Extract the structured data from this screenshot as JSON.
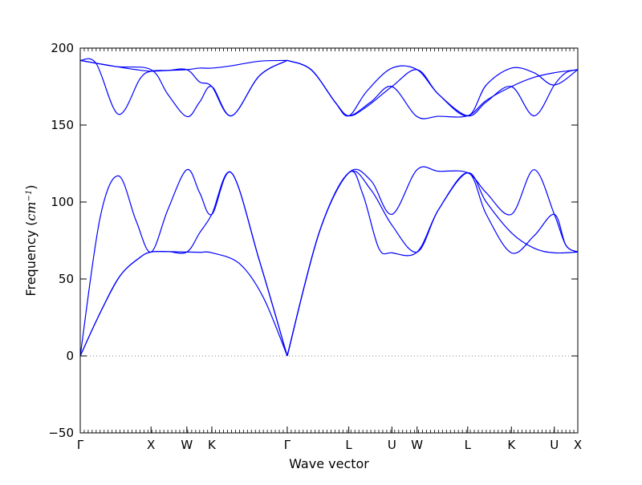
{
  "chart_data": {
    "type": "line",
    "title": "",
    "xlabel": "Wave vector",
    "ylabel": {
      "prefix": "Frequency (",
      "unit": "cm",
      "exponent": "−1",
      "suffix": ")"
    },
    "ylim": [
      -50,
      200
    ],
    "yticks": [
      {
        "value": -50,
        "label": "−50"
      },
      {
        "value": 0,
        "label": "0"
      },
      {
        "value": 50,
        "label": "50"
      },
      {
        "value": 100,
        "label": "100"
      },
      {
        "value": 150,
        "label": "150"
      },
      {
        "value": 200,
        "label": "200"
      }
    ],
    "xlim": [
      0,
      6.25
    ],
    "high_symmetry_points": [
      {
        "label": "Γ",
        "x": 0.0
      },
      {
        "label": "X",
        "x": 0.889
      },
      {
        "label": "W",
        "x": 1.339
      },
      {
        "label": "K",
        "x": 1.653
      },
      {
        "label": "Γ",
        "x": 2.6
      },
      {
        "label": "L",
        "x": 3.373
      },
      {
        "label": "U",
        "x": 3.915
      },
      {
        "label": "W",
        "x": 4.231
      },
      {
        "label": "L",
        "x": 4.867
      },
      {
        "label": "K",
        "x": 5.416
      },
      {
        "label": "U",
        "x": 5.955
      },
      {
        "label": "X",
        "x": 6.25
      }
    ],
    "zero_line": {
      "value": 0,
      "style": "dotted",
      "color": "#808080"
    },
    "grid": false,
    "line_color": "#0000ff",
    "series": [
      {
        "x": [
          0,
          0.25,
          0.5,
          0.75,
          0.889,
          1.1,
          1.339,
          1.5,
          1.653,
          2.0,
          2.3,
          2.6
        ],
        "y": [
          0,
          28,
          52,
          64,
          67.5,
          67.8,
          67.5,
          67.3,
          67,
          60,
          38,
          0
        ]
      },
      {
        "x": [
          0,
          0.25,
          0.5,
          0.75,
          0.889,
          1.1,
          1.339,
          1.5,
          1.653,
          1.9,
          2.25,
          2.6
        ],
        "y": [
          0,
          28,
          52,
          64,
          67.5,
          67.8,
          67.5,
          80,
          92,
          119,
          62,
          0
        ]
      },
      {
        "x": [
          0,
          0.25,
          0.48,
          0.7,
          0.889,
          1.1,
          1.339,
          1.5,
          1.653,
          1.9,
          2.25,
          2.6
        ],
        "y": [
          0,
          90,
          117,
          88,
          67.5,
          95,
          121,
          106,
          92,
          119,
          62,
          0
        ]
      },
      {
        "x": [
          0,
          0.2,
          0.48,
          0.75,
          0.889,
          1.1,
          1.339,
          1.5,
          1.653,
          1.9,
          2.25,
          2.6
        ],
        "y": [
          192,
          190,
          157,
          180,
          185,
          185.5,
          186,
          187,
          187,
          188.5,
          191.5,
          192
        ]
      },
      {
        "x": [
          0,
          0.45,
          0.889,
          1.1,
          1.339,
          1.5,
          1.653,
          1.9,
          2.25,
          2.6
        ],
        "y": [
          192,
          188,
          186,
          170,
          155.5,
          165,
          175,
          156,
          182,
          192
        ]
      },
      {
        "x": [
          0,
          0.45,
          0.7,
          0.889,
          1.1,
          1.339,
          1.5,
          1.653,
          1.9,
          2.25,
          2.6
        ],
        "y": [
          192,
          188,
          186,
          185,
          185.5,
          186,
          178,
          175,
          156,
          182,
          192
        ]
      },
      {
        "x": [
          2.6,
          3.0,
          3.373,
          3.65,
          3.915,
          4.231,
          4.5,
          4.867,
          5.1,
          5.416,
          5.7,
          5.955,
          6.1,
          6.25
        ],
        "y": [
          0,
          80,
          119,
          114,
          92,
          121,
          120,
          119,
          106,
          92,
          121,
          92,
          72,
          67.5
        ]
      },
      {
        "x": [
          2.6,
          3.0,
          3.373,
          3.55,
          3.75,
          3.915,
          4.231,
          4.5,
          4.867,
          5.1,
          5.416,
          5.7,
          5.955,
          6.1,
          6.25
        ],
        "y": [
          0,
          80,
          119,
          105,
          70,
          67,
          67.5,
          95,
          119,
          92,
          67,
          78,
          92,
          72,
          67.5
        ]
      },
      {
        "x": [
          2.6,
          3.0,
          3.373,
          3.65,
          3.915,
          4.231,
          4.5,
          4.867,
          5.1,
          5.416,
          5.7,
          5.955,
          6.25
        ],
        "y": [
          0,
          80,
          119,
          108,
          85,
          67.5,
          95,
          119,
          100,
          80,
          70,
          67,
          67.5
        ]
      },
      {
        "x": [
          2.6,
          2.9,
          3.2,
          3.373,
          3.6,
          3.915,
          4.231,
          4.5,
          4.867,
          5.1,
          5.416,
          5.7,
          5.955,
          6.25
        ],
        "y": [
          192,
          186,
          165,
          156,
          172,
          187,
          186,
          170,
          156,
          176,
          187,
          184,
          176,
          186
        ]
      },
      {
        "x": [
          2.6,
          2.9,
          3.2,
          3.373,
          3.6,
          3.915,
          4.231,
          4.5,
          4.867,
          5.1,
          5.416,
          5.7,
          5.955,
          6.1,
          6.25
        ],
        "y": [
          192,
          186,
          165,
          156,
          162,
          175,
          186,
          170,
          156,
          165,
          175,
          156,
          176,
          184,
          186
        ]
      },
      {
        "x": [
          2.6,
          2.9,
          3.2,
          3.373,
          3.65,
          3.915,
          4.231,
          4.5,
          4.867,
          5.1,
          5.416,
          5.7,
          5.955,
          6.25
        ],
        "y": [
          192,
          186,
          165,
          156,
          165,
          175,
          155.5,
          155.7,
          156,
          166,
          175,
          181,
          184,
          186
        ]
      }
    ]
  }
}
